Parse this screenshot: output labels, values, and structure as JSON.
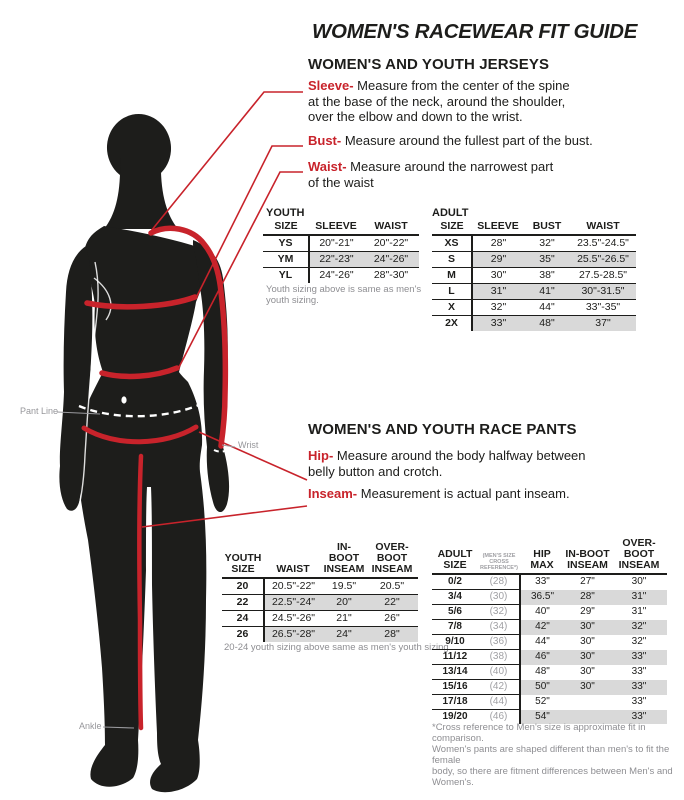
{
  "title": "WOMEN'S RACEWEAR FIT GUIDE",
  "colors": {
    "accent_red": "#c8232b",
    "text_black": "#1d1d1b",
    "row_shade": "#d9d9d9",
    "note_gray": "#8e8e92"
  },
  "figure": {
    "pant_line_label": "Pant Line",
    "wrist_label": "Wrist",
    "ankle_label": "Ankle"
  },
  "jerseys": {
    "heading": "WOMEN'S AND YOUTH JERSEYS",
    "measures": [
      {
        "term": "Sleeve-",
        "lines": [
          "Measure from the center of the spine",
          "at the base of the neck, around the shoulder,",
          "over the elbow and down to the wrist."
        ]
      },
      {
        "term": "Bust-",
        "lines": [
          "Measure around the fullest part of the bust."
        ]
      },
      {
        "term": "Waist-",
        "lines": [
          "Measure around the narrowest part",
          "of the waist"
        ]
      }
    ],
    "youth_table": {
      "label": "YOUTH",
      "headers": [
        "SIZE",
        "SLEEVE",
        "WAIST"
      ],
      "rows": [
        [
          "YS",
          "20\"-21\"",
          "20\"-22\""
        ],
        [
          "YM",
          "22\"-23\"",
          "24\"-26\""
        ],
        [
          "YL",
          "24\"-26\"",
          "28\"-30\""
        ]
      ],
      "note_lines": [
        "Youth sizing above is same as men's",
        "youth sizing."
      ]
    },
    "adult_table": {
      "label": "ADULT",
      "headers": [
        "SIZE",
        "SLEEVE",
        "BUST",
        "WAIST"
      ],
      "rows": [
        [
          "XS",
          "28\"",
          "32\"",
          "23.5\"-24.5\""
        ],
        [
          "S",
          "29\"",
          "35\"",
          "25.5\"-26.5\""
        ],
        [
          "M",
          "30\"",
          "38\"",
          "27.5-28.5\""
        ],
        [
          "L",
          "31\"",
          "41\"",
          "30\"-31.5\""
        ],
        [
          "X",
          "32\"",
          "44\"",
          "33\"-35\""
        ],
        [
          "2X",
          "33\"",
          "48\"",
          "37\""
        ]
      ]
    }
  },
  "pants": {
    "heading": "WOMEN'S AND YOUTH RACE PANTS",
    "measures": [
      {
        "term": "Hip-",
        "lines": [
          "Measure around the body halfway between",
          "belly button and crotch."
        ]
      },
      {
        "term": "Inseam-",
        "lines": [
          "Measurement is actual pant inseam."
        ]
      }
    ],
    "youth_table": {
      "headers": [
        "YOUTH\nSIZE",
        "WAIST",
        "IN-BOOT\nINSEAM",
        "OVER-BOOT\nINSEAM"
      ],
      "rows": [
        [
          "20",
          "20.5\"-22\"",
          "19.5\"",
          "20.5\""
        ],
        [
          "22",
          "22.5\"-24\"",
          "20\"",
          "22\""
        ],
        [
          "24",
          "24.5\"-26\"",
          "21\"",
          "26\""
        ],
        [
          "26",
          "26.5\"-28\"",
          "24\"",
          "28\""
        ]
      ],
      "note_lines": [
        "20-24 youth sizing above same as men's youth sizing"
      ]
    },
    "adult_table": {
      "headers": [
        "ADULT\nSIZE",
        "(MEN'S SIZE\nCROSS\nREFERENCE*)",
        "HIP\nMAX",
        "IN-BOOT\nINSEAM",
        "OVER-BOOT\nINSEAM"
      ],
      "rows": [
        [
          "0/2",
          "(28)",
          "33\"",
          "27\"",
          "30\""
        ],
        [
          "3/4",
          "(30)",
          "36.5\"",
          "28\"",
          "31\""
        ],
        [
          "5/6",
          "(32)",
          "40\"",
          "29\"",
          "31\""
        ],
        [
          "7/8",
          "(34)",
          "42\"",
          "30\"",
          "32\""
        ],
        [
          "9/10",
          "(36)",
          "44\"",
          "30\"",
          "32\""
        ],
        [
          "11/12",
          "(38)",
          "46\"",
          "30\"",
          "33\""
        ],
        [
          "13/14",
          "(40)",
          "48\"",
          "30\"",
          "33\""
        ],
        [
          "15/16",
          "(42)",
          "50\"",
          "30\"",
          "33\""
        ],
        [
          "17/18",
          "(44)",
          "52\"",
          "",
          "33\""
        ],
        [
          "19/20",
          "(46)",
          "54\"",
          "",
          "33\""
        ]
      ],
      "footnote_lines": [
        "*Cross reference to Men's size is approximate fit in comparison.",
        "Women's pants are shaped different than men's to fit the female",
        "body, so there are fitment differences between Men's and",
        "Women's."
      ]
    }
  }
}
